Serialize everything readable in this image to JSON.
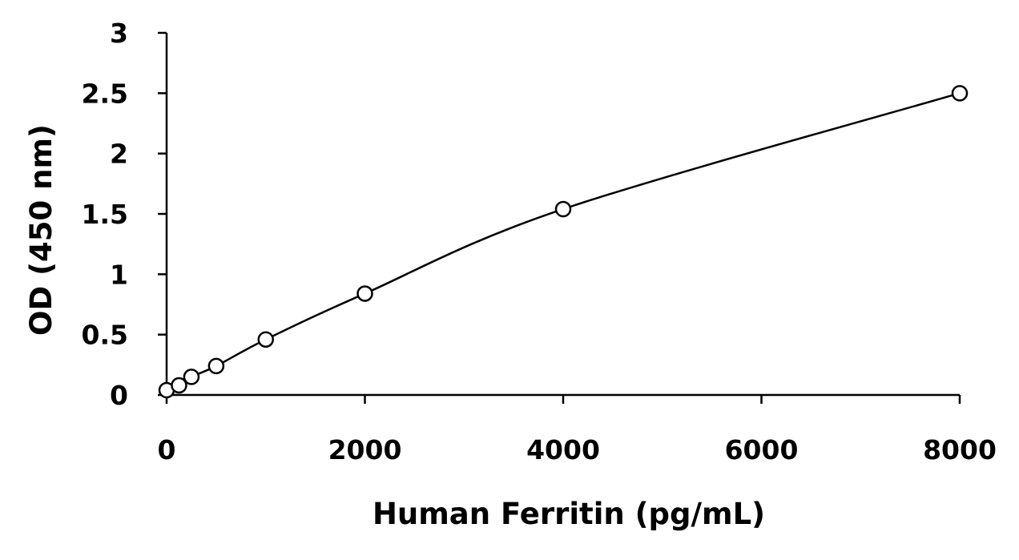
{
  "chart_data": {
    "type": "scatter",
    "title": "",
    "xlabel": "Human Ferritin (pg/mL)",
    "ylabel": "OD (450 nm)",
    "xlim": [
      0,
      8000
    ],
    "ylim": [
      0,
      3
    ],
    "xticks": [
      0,
      2000,
      4000,
      6000,
      8000
    ],
    "yticks": [
      0,
      0.5,
      1,
      1.5,
      2,
      2.5,
      3
    ],
    "xtick_labels": [
      "0",
      "2000",
      "4000",
      "6000",
      "8000"
    ],
    "ytick_labels": [
      "0",
      "0.5",
      "1",
      "1.5",
      "2",
      "2.5",
      "3"
    ],
    "grid": false,
    "legend": "none",
    "marker": "open-circle",
    "has_fit_curve": true,
    "series": [
      {
        "x": [
          0,
          125,
          250,
          500,
          1000,
          2000,
          4000,
          8000
        ],
        "y": [
          0.04,
          0.08,
          0.15,
          0.24,
          0.46,
          0.84,
          1.54,
          2.5
        ]
      }
    ]
  }
}
